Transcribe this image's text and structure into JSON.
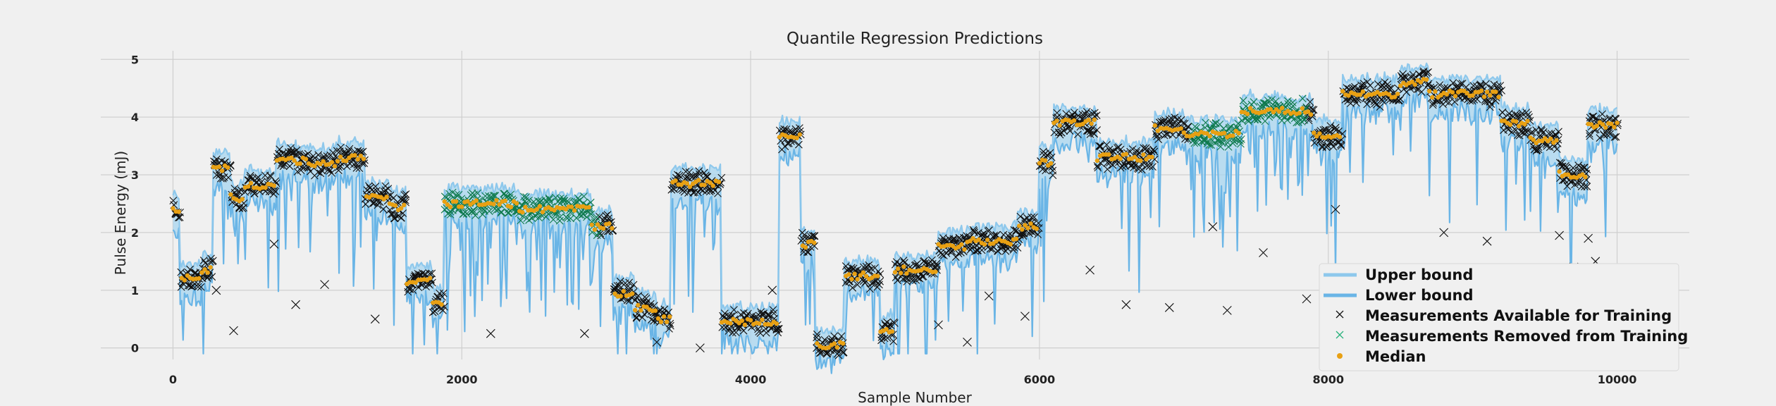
{
  "chart_data": {
    "type": "line",
    "title": "Quantile Regression Predictions",
    "xlabel": "Sample Number",
    "ylabel": "Pulse Energy (mJ)",
    "xlim": [
      -500,
      10500
    ],
    "ylim": [
      -0.2,
      5.15
    ],
    "xticks": [
      0,
      2000,
      4000,
      6000,
      8000,
      10000
    ],
    "yticks": [
      0,
      1,
      2,
      3,
      4,
      5
    ],
    "grid": true,
    "legend_position": "lower-right",
    "colors": {
      "upper": "#8ec8ec",
      "lower": "#6ab5e6",
      "band": "#a7d5f0",
      "available": "#111111",
      "removed": "#0f7a4e",
      "median": "#e8a013"
    },
    "segments": [
      [
        0,
        50,
        2.4
      ],
      [
        50,
        200,
        1.2
      ],
      [
        200,
        280,
        1.35
      ],
      [
        280,
        400,
        3.1
      ],
      [
        400,
        500,
        2.6
      ],
      [
        500,
        720,
        2.8
      ],
      [
        720,
        950,
        3.25
      ],
      [
        950,
        1150,
        3.2
      ],
      [
        1150,
        1330,
        3.3
      ],
      [
        1330,
        1500,
        2.6
      ],
      [
        1500,
        1620,
        2.45
      ],
      [
        1620,
        1800,
        1.15
      ],
      [
        1800,
        1880,
        0.8
      ],
      [
        1880,
        2400,
        2.5
      ],
      [
        2400,
        2900,
        2.4
      ],
      [
        2900,
        3050,
        2.1
      ],
      [
        3050,
        3200,
        0.95
      ],
      [
        3200,
        3350,
        0.7
      ],
      [
        3350,
        3450,
        0.5
      ],
      [
        3450,
        3800,
        2.85
      ],
      [
        3800,
        4200,
        0.45
      ],
      [
        4200,
        4350,
        3.65
      ],
      [
        4350,
        4450,
        1.8
      ],
      [
        4450,
        4650,
        0.05
      ],
      [
        4650,
        4900,
        1.25
      ],
      [
        4900,
        5000,
        0.3
      ],
      [
        5000,
        5300,
        1.35
      ],
      [
        5300,
        5500,
        1.75
      ],
      [
        5500,
        5850,
        1.85
      ],
      [
        5850,
        6000,
        2.1
      ],
      [
        6000,
        6100,
        3.2
      ],
      [
        6100,
        6400,
        3.9
      ],
      [
        6400,
        6800,
        3.3
      ],
      [
        6800,
        7000,
        3.8
      ],
      [
        7000,
        7400,
        3.7
      ],
      [
        7400,
        7900,
        4.1
      ],
      [
        7900,
        8100,
        3.7
      ],
      [
        8100,
        8500,
        4.4
      ],
      [
        8500,
        8700,
        4.6
      ],
      [
        8700,
        9200,
        4.4
      ],
      [
        9200,
        9400,
        3.9
      ],
      [
        9400,
        9600,
        3.6
      ],
      [
        9600,
        9800,
        3.0
      ],
      [
        9800,
        10000,
        3.85
      ]
    ],
    "series": [
      {
        "name": "Upper bound",
        "kind": "line"
      },
      {
        "name": "Lower bound",
        "kind": "line"
      },
      {
        "name": "Measurements Available for Training",
        "kind": "marker-x"
      },
      {
        "name": "Measurements Removed from Training",
        "kind": "marker-x"
      },
      {
        "name": "Median",
        "kind": "marker-dot"
      }
    ],
    "removed_ranges": [
      [
        1880,
        2950
      ],
      [
        7050,
        7850
      ]
    ],
    "outliers": [
      [
        300,
        1.0
      ],
      [
        420,
        0.3
      ],
      [
        700,
        1.8
      ],
      [
        850,
        0.75
      ],
      [
        1050,
        1.1
      ],
      [
        1400,
        0.5
      ],
      [
        2200,
        0.25
      ],
      [
        2850,
        0.25
      ],
      [
        3350,
        0.1
      ],
      [
        3650,
        0.0
      ],
      [
        4150,
        1.0
      ],
      [
        5300,
        0.4
      ],
      [
        5500,
        0.1
      ],
      [
        5650,
        0.9
      ],
      [
        5900,
        0.55
      ],
      [
        6350,
        1.35
      ],
      [
        6600,
        0.75
      ],
      [
        6900,
        0.7
      ],
      [
        7200,
        2.1
      ],
      [
        7300,
        0.65
      ],
      [
        7550,
        1.65
      ],
      [
        7850,
        0.85
      ],
      [
        8050,
        2.4
      ],
      [
        8300,
        0.35
      ],
      [
        8450,
        1.25
      ],
      [
        8600,
        1.3
      ],
      [
        8800,
        2.0
      ],
      [
        8850,
        0.3
      ],
      [
        9100,
        1.85
      ],
      [
        9150,
        1.3
      ],
      [
        9350,
        0.4
      ],
      [
        9600,
        1.95
      ],
      [
        9700,
        1.4
      ],
      [
        9800,
        1.9
      ],
      [
        9850,
        1.5
      ]
    ]
  }
}
